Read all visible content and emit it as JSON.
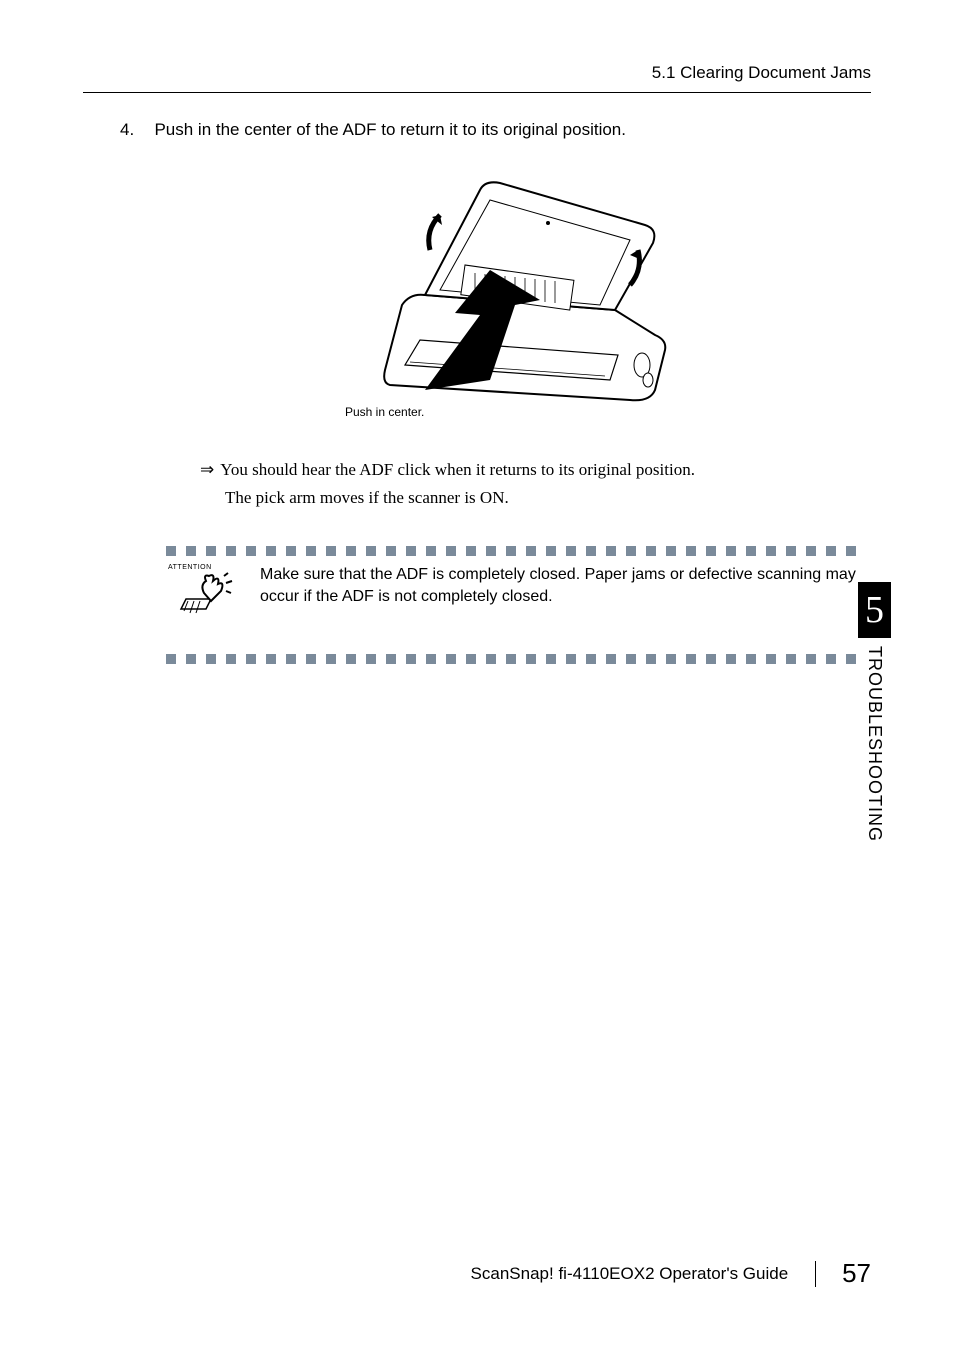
{
  "header": {
    "section": "5.1 Clearing Document Jams"
  },
  "step": {
    "number": "4.",
    "text": "Push in the center of the ADF to return it to its original position."
  },
  "figure": {
    "caption": "Push in center."
  },
  "result": {
    "arrow": "⇒",
    "line1": "You should hear the ADF click when it returns to its original position.",
    "line2": "The pick arm moves if the scanner is ON."
  },
  "attention": {
    "label": "ATTENTION",
    "text": "Make sure that the ADF is completely closed. Paper jams or defective scanning may occur if the ADF is not completely closed."
  },
  "sidetab": {
    "chapter_number": "5",
    "chapter_title": "TROUBLESHOOTING"
  },
  "footer": {
    "title": "ScanSnap! fi-4110EOX2 Operator's Guide",
    "page": "57"
  },
  "colors": {
    "square": "#7a8a9a",
    "text": "#000000",
    "background": "#ffffff"
  },
  "squares_count": 35
}
